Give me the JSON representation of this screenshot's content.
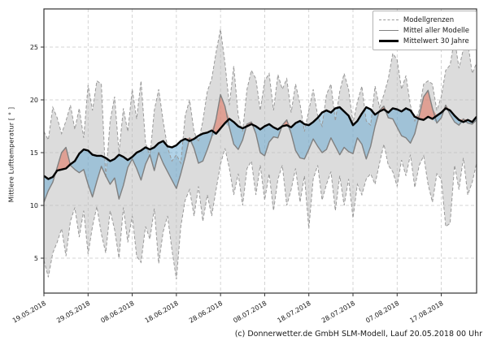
{
  "figure": {
    "footer": "(c) Donnerwetter.de GmbH SLM-Modell, Lauf 20.05.2018 00 Uhr"
  },
  "legend": {
    "items": [
      {
        "label": "Modellgrenzen",
        "style": "dashed-gray"
      },
      {
        "label": "Mittel aller Modelle",
        "style": "solid-gray"
      },
      {
        "label": "Mittelwert 30 Jahre",
        "style": "thick-black"
      }
    ]
  },
  "chart_data": {
    "type": "line",
    "title": "",
    "ylabel": "Mittlere Lufttemperatur [ ° ]",
    "xlabel": "",
    "ylim": [
      1.7,
      28.6
    ],
    "y_ticks": [
      5,
      10,
      15,
      20,
      25
    ],
    "x_tick_day_index": [
      0,
      10,
      20,
      30,
      40,
      50,
      60,
      70,
      80,
      90
    ],
    "x_ticklabels": [
      "19.05.2018",
      "29.05.2018",
      "08.06.2018",
      "18.06.2018",
      "28.06.2018",
      "08.07.2018",
      "18.07.2018",
      "28.07.2018",
      "07.08.2018",
      "17.08.2018"
    ],
    "grid": "dashed both axes",
    "legend_position": "upper right inside",
    "series": [
      {
        "name": "Mittelwert 30 Jahre",
        "role": "climate_mean_30y",
        "values": [
          12.8,
          12.5,
          12.7,
          13.3,
          13.4,
          13.5,
          13.9,
          14.2,
          14.9,
          15.3,
          15.2,
          14.8,
          14.7,
          14.7,
          14.5,
          14.2,
          14.4,
          14.8,
          14.6,
          14.3,
          14.6,
          15.0,
          15.2,
          15.5,
          15.3,
          15.5,
          15.9,
          16.1,
          15.6,
          15.5,
          15.7,
          16.1,
          16.3,
          16.1,
          16.3,
          16.6,
          16.8,
          16.9,
          17.1,
          16.8,
          17.3,
          17.8,
          18.2,
          17.9,
          17.5,
          17.3,
          17.5,
          17.7,
          17.5,
          17.2,
          17.5,
          17.7,
          17.4,
          17.2,
          17.5,
          17.6,
          17.4,
          17.8,
          18.0,
          17.7,
          17.6,
          17.9,
          18.3,
          18.8,
          19.0,
          18.8,
          19.2,
          19.3,
          18.9,
          18.5,
          17.6,
          18.0,
          18.7,
          19.3,
          19.1,
          18.6,
          18.9,
          19.1,
          18.8,
          19.2,
          19.1,
          18.9,
          19.2,
          19.0,
          18.4,
          18.2,
          18.1,
          18.4,
          18.2,
          18.5,
          18.8,
          19.2,
          19.0,
          18.5,
          18.1,
          17.9,
          18.1,
          17.9,
          18.4
        ]
      },
      {
        "name": "Mittel aller Modelle",
        "role": "model_mean",
        "values": [
          10.3,
          11.4,
          12.2,
          13.6,
          15.0,
          15.5,
          13.8,
          13.4,
          13.1,
          13.4,
          12.0,
          10.8,
          12.3,
          13.7,
          12.8,
          12.0,
          12.6,
          10.6,
          11.9,
          13.6,
          14.4,
          13.5,
          12.4,
          13.9,
          14.8,
          13.3,
          15.0,
          14.0,
          13.2,
          12.4,
          11.6,
          13.0,
          14.6,
          16.4,
          15.4,
          14.0,
          14.2,
          15.3,
          16.5,
          18.2,
          20.5,
          19.4,
          17.4,
          15.8,
          15.3,
          16.2,
          17.7,
          17.9,
          16.8,
          15.0,
          14.7,
          16.0,
          16.5,
          16.4,
          17.6,
          18.1,
          16.8,
          15.2,
          14.5,
          14.4,
          15.3,
          16.3,
          15.6,
          15.0,
          15.3,
          16.4,
          15.6,
          14.8,
          15.5,
          15.1,
          14.9,
          16.4,
          15.8,
          14.4,
          15.6,
          17.5,
          19.0,
          19.4,
          18.3,
          18.2,
          17.4,
          16.6,
          16.4,
          15.9,
          16.8,
          18.5,
          20.3,
          20.9,
          19.2,
          17.8,
          18.3,
          19.5,
          18.6,
          17.9,
          17.6,
          18.2,
          17.8,
          17.7,
          18.1
        ]
      },
      {
        "name": "Modellgrenze oben",
        "role": "model_upper_bound",
        "values": [
          17.0,
          16.2,
          19.3,
          18.3,
          16.8,
          18.0,
          19.5,
          17.2,
          19.2,
          16.4,
          21.4,
          19.0,
          21.8,
          21.5,
          12.6,
          18.0,
          20.3,
          15.0,
          19.2,
          17.0,
          21.0,
          18.2,
          21.8,
          16.0,
          14.6,
          19.0,
          21.0,
          18.0,
          15.5,
          14.2,
          14.8,
          14.0,
          18.5,
          20.0,
          17.0,
          16.0,
          18.0,
          20.8,
          22.0,
          24.5,
          26.7,
          23.5,
          19.5,
          23.2,
          18.5,
          17.0,
          21.0,
          22.8,
          22.0,
          19.0,
          21.8,
          22.5,
          19.0,
          22.4,
          21.0,
          22.0,
          18.8,
          21.5,
          19.6,
          17.0,
          19.0,
          21.0,
          18.5,
          17.5,
          20.5,
          21.5,
          18.0,
          20.8,
          22.5,
          21.0,
          17.8,
          19.8,
          21.3,
          18.0,
          17.6,
          21.3,
          19.3,
          20.5,
          22.0,
          24.4,
          23.8,
          21.0,
          22.3,
          19.5,
          18.0,
          19.0,
          21.5,
          21.8,
          21.5,
          19.0,
          20.3,
          22.8,
          23.3,
          25.8,
          23.0,
          24.8,
          25.5,
          22.5,
          23.5
        ]
      },
      {
        "name": "Modellgrenze unten",
        "role": "model_lower_bound",
        "values": [
          4.8,
          3.2,
          5.5,
          6.5,
          7.8,
          5.2,
          8.5,
          9.8,
          7.0,
          9.5,
          5.4,
          8.0,
          9.9,
          7.3,
          5.5,
          9.5,
          7.7,
          5.0,
          9.8,
          6.5,
          9.0,
          5.2,
          4.6,
          8.0,
          6.8,
          9.7,
          4.5,
          7.5,
          9.0,
          5.8,
          3.0,
          8.0,
          10.5,
          11.5,
          9.0,
          11.8,
          8.5,
          11.0,
          9.0,
          11.5,
          13.9,
          15.4,
          13.5,
          11.0,
          13.0,
          10.0,
          13.5,
          14.2,
          11.0,
          13.8,
          10.5,
          13.0,
          9.5,
          12.5,
          13.8,
          10.0,
          11.5,
          13.5,
          10.3,
          12.8,
          7.8,
          12.5,
          13.8,
          10.5,
          12.0,
          13.2,
          9.5,
          12.8,
          10.0,
          12.5,
          8.8,
          12.0,
          11.0,
          12.5,
          13.0,
          12.0,
          14.0,
          15.8,
          13.8,
          13.2,
          11.8,
          14.3,
          12.8,
          14.8,
          11.7,
          13.8,
          14.7,
          12.0,
          10.3,
          13.0,
          12.5,
          8.0,
          8.3,
          13.8,
          11.5,
          14.5,
          11.0,
          12.2,
          14.0
        ]
      }
    ],
    "colors": {
      "climate_line": "#000000",
      "model_mean_line": "#808080",
      "bounds_line": "#999999",
      "envelope_fill": "#b9b9b9",
      "below_normal_fill": "#64a8d2",
      "above_normal_fill": "#e1705a",
      "grid": "#c9c9c9",
      "frame": "#333333"
    }
  }
}
